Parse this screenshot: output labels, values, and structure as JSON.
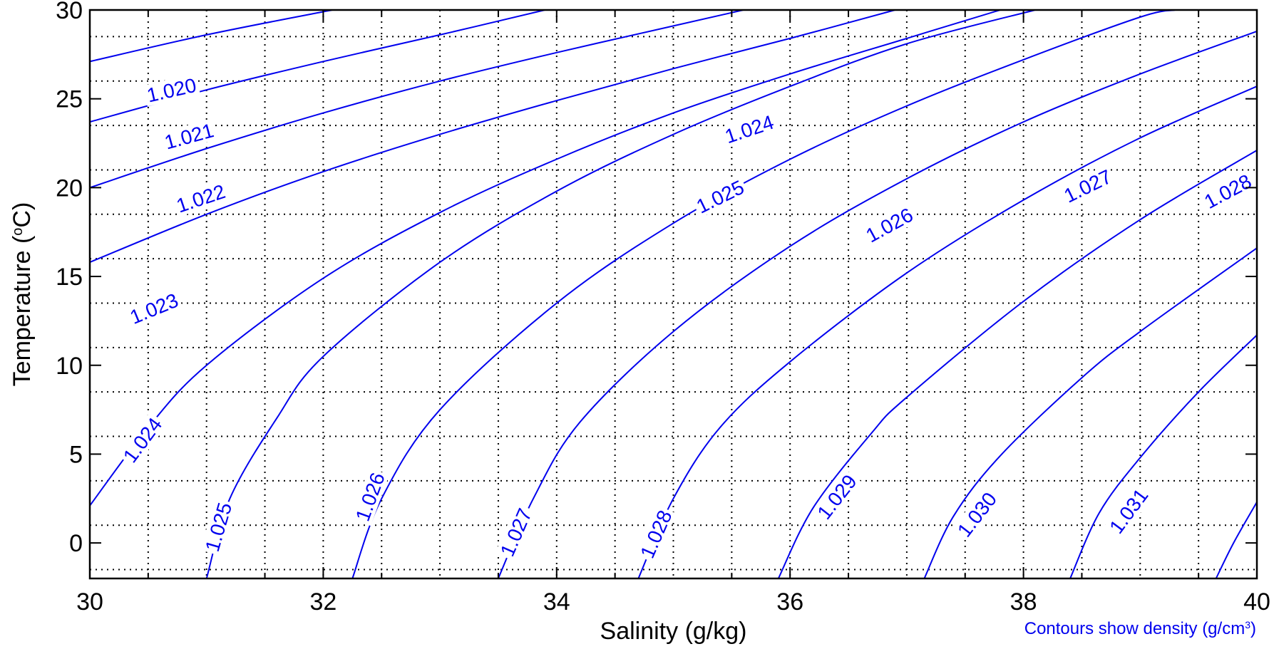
{
  "chart_data": {
    "type": "contour",
    "title": "",
    "xlabel": "Salinity (g/kg)",
    "ylabel_parts": [
      "Temperature (",
      "o",
      "C)"
    ],
    "xlim": [
      30,
      40
    ],
    "ylim": [
      -2,
      30
    ],
    "x_ticks": [
      30,
      32,
      34,
      36,
      38,
      40
    ],
    "x_tick_labels": [
      "30",
      "32",
      "34",
      "36",
      "38",
      "40"
    ],
    "y_ticks": [
      0,
      5,
      10,
      15,
      20,
      25,
      30
    ],
    "y_tick_labels": [
      "0",
      "5",
      "10",
      "15",
      "20",
      "25",
      "30"
    ],
    "x_minor_step": 0.5,
    "y_minor_step": 2.5,
    "grid": true,
    "grid_style": "dotted",
    "contour_color": "#0000ee",
    "note_parts": [
      "Contours show density (g/cm",
      "3",
      ")"
    ],
    "contours": [
      {
        "label": "1.020",
        "points": [
          [
            30,
            27.1
          ],
          [
            31,
            28.6
          ],
          [
            32,
            29.9
          ],
          [
            32.1,
            30
          ]
        ]
      },
      {
        "label": "1.021",
        "points": [
          [
            30,
            23.7
          ],
          [
            31,
            25.5
          ],
          [
            32,
            27.1
          ],
          [
            33,
            28.6
          ],
          [
            33.9,
            30
          ]
        ]
      },
      {
        "label": "1.022",
        "points": [
          [
            30,
            20.0
          ],
          [
            31,
            22.2
          ],
          [
            32,
            24.2
          ],
          [
            33,
            26.0
          ],
          [
            34,
            27.6
          ],
          [
            35,
            29.1
          ],
          [
            35.6,
            30
          ]
        ]
      },
      {
        "label": "1.023",
        "points": [
          [
            30,
            15.8
          ],
          [
            31,
            18.5
          ],
          [
            32,
            20.9
          ],
          [
            33,
            23.0
          ],
          [
            34,
            24.9
          ],
          [
            35,
            26.7
          ],
          [
            36,
            28.4
          ],
          [
            36.9,
            30
          ]
        ]
      },
      {
        "label": "1.024",
        "points": [
          [
            30,
            2.1
          ],
          [
            30.5,
            6.5
          ],
          [
            31,
            10.0
          ],
          [
            32,
            14.9
          ],
          [
            33,
            18.6
          ],
          [
            34,
            21.6
          ],
          [
            35,
            24.2
          ],
          [
            36,
            26.4
          ],
          [
            37,
            28.4
          ],
          [
            37.8,
            30
          ]
        ]
      },
      {
        "label": "1.025",
        "points": [
          [
            31.0,
            -2
          ],
          [
            31.2,
            2.5
          ],
          [
            31.6,
            7.0
          ],
          [
            32,
            10.5
          ],
          [
            33,
            15.8
          ],
          [
            34,
            19.8
          ],
          [
            35,
            23.0
          ],
          [
            36,
            25.7
          ],
          [
            37,
            28.1
          ],
          [
            38.1,
            30
          ]
        ]
      },
      {
        "label": "1.026",
        "points": [
          [
            32.25,
            -2
          ],
          [
            32.5,
            2.5
          ],
          [
            33,
            7.5
          ],
          [
            34,
            13.5
          ],
          [
            35,
            18.0
          ],
          [
            36,
            21.6
          ],
          [
            37,
            24.6
          ],
          [
            38,
            27.2
          ],
          [
            39,
            29.6
          ],
          [
            39.3,
            30
          ]
        ]
      },
      {
        "label": "1.027",
        "points": [
          [
            33.5,
            -2
          ],
          [
            33.8,
            2.5
          ],
          [
            34.2,
            6.8
          ],
          [
            35,
            11.9
          ],
          [
            36,
            16.7
          ],
          [
            37,
            20.5
          ],
          [
            38,
            23.7
          ],
          [
            39,
            26.4
          ],
          [
            40,
            28.8
          ]
        ]
      },
      {
        "label": "1.028",
        "points": [
          [
            34.7,
            -2
          ],
          [
            35.0,
            2.5
          ],
          [
            35.4,
            6.5
          ],
          [
            36,
            10.2
          ],
          [
            37,
            15.2
          ],
          [
            38,
            19.3
          ],
          [
            39,
            22.8
          ],
          [
            40,
            25.7
          ]
        ]
      },
      {
        "label": "1.029",
        "points": [
          [
            35.9,
            -2
          ],
          [
            36.2,
            2.0
          ],
          [
            36.7,
            6.2
          ],
          [
            37,
            8.2
          ],
          [
            38,
            13.6
          ],
          [
            39,
            18.2
          ],
          [
            40,
            22.1
          ]
        ]
      },
      {
        "label": "1.030",
        "points": [
          [
            37.15,
            -2
          ],
          [
            37.4,
            1.5
          ],
          [
            37.8,
            4.9
          ],
          [
            38.5,
            9.3
          ],
          [
            39,
            11.9
          ],
          [
            40,
            16.6
          ]
        ]
      },
      {
        "label": "1.031",
        "points": [
          [
            38.4,
            -2
          ],
          [
            38.65,
            1.7
          ],
          [
            39,
            4.8
          ],
          [
            39.5,
            8.5
          ],
          [
            40,
            11.7
          ]
        ]
      },
      {
        "label": "",
        "points": [
          [
            39.65,
            -2
          ],
          [
            39.8,
            0
          ],
          [
            40,
            2.3
          ]
        ]
      }
    ],
    "contour_labels": [
      {
        "text": "1.020",
        "x": 30.7,
        "y": 25.5
      },
      {
        "text": "1.021",
        "x": 30.85,
        "y": 22.9
      },
      {
        "text": "1.022",
        "x": 30.95,
        "y": 19.4
      },
      {
        "text": "1.023",
        "x": 30.55,
        "y": 13.2
      },
      {
        "text": "1.024",
        "x": 30.45,
        "y": 5.8
      },
      {
        "text": "1.024",
        "x": 35.65,
        "y": 23.3
      },
      {
        "text": "1.025",
        "x": 35.4,
        "y": 19.5
      },
      {
        "text": "1.025",
        "x": 31.1,
        "y": 0.9
      },
      {
        "text": "1.026",
        "x": 36.85,
        "y": 17.9
      },
      {
        "text": "1.026",
        "x": 32.4,
        "y": 2.6
      },
      {
        "text": "1.027",
        "x": 38.55,
        "y": 20.1
      },
      {
        "text": "1.027",
        "x": 33.65,
        "y": 0.6
      },
      {
        "text": "1.028",
        "x": 40.9,
        "y": 19.8
      },
      {
        "text": "1.028",
        "x": 34.85,
        "y": 0.5
      },
      {
        "text": "1.029",
        "x": 36.4,
        "y": 2.6
      },
      {
        "text": "1.030",
        "x": 37.6,
        "y": 1.6
      },
      {
        "text": "1.031",
        "x": 38.9,
        "y": 1.8
      }
    ]
  }
}
